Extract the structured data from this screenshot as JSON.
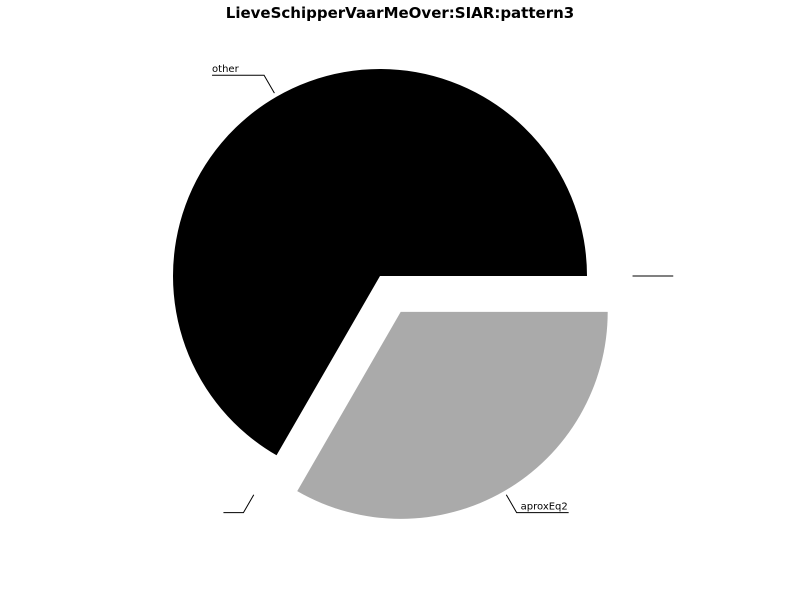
{
  "chart_data": {
    "type": "pie",
    "title": "LieveSchipperVaarMeOver:SIAR:pattern3",
    "slices": [
      {
        "label": "other",
        "value": 0.6667,
        "color": "#000000",
        "exploded": false
      },
      {
        "label": "",
        "value": 0.0,
        "color": "#ffffff",
        "exploded": true
      },
      {
        "label": "aproxEq2",
        "value": 0.3333,
        "color": "#aaaaaa",
        "exploded": true
      },
      {
        "label": "",
        "value": 0.0,
        "color": "#ffffff",
        "exploded": true
      }
    ]
  }
}
